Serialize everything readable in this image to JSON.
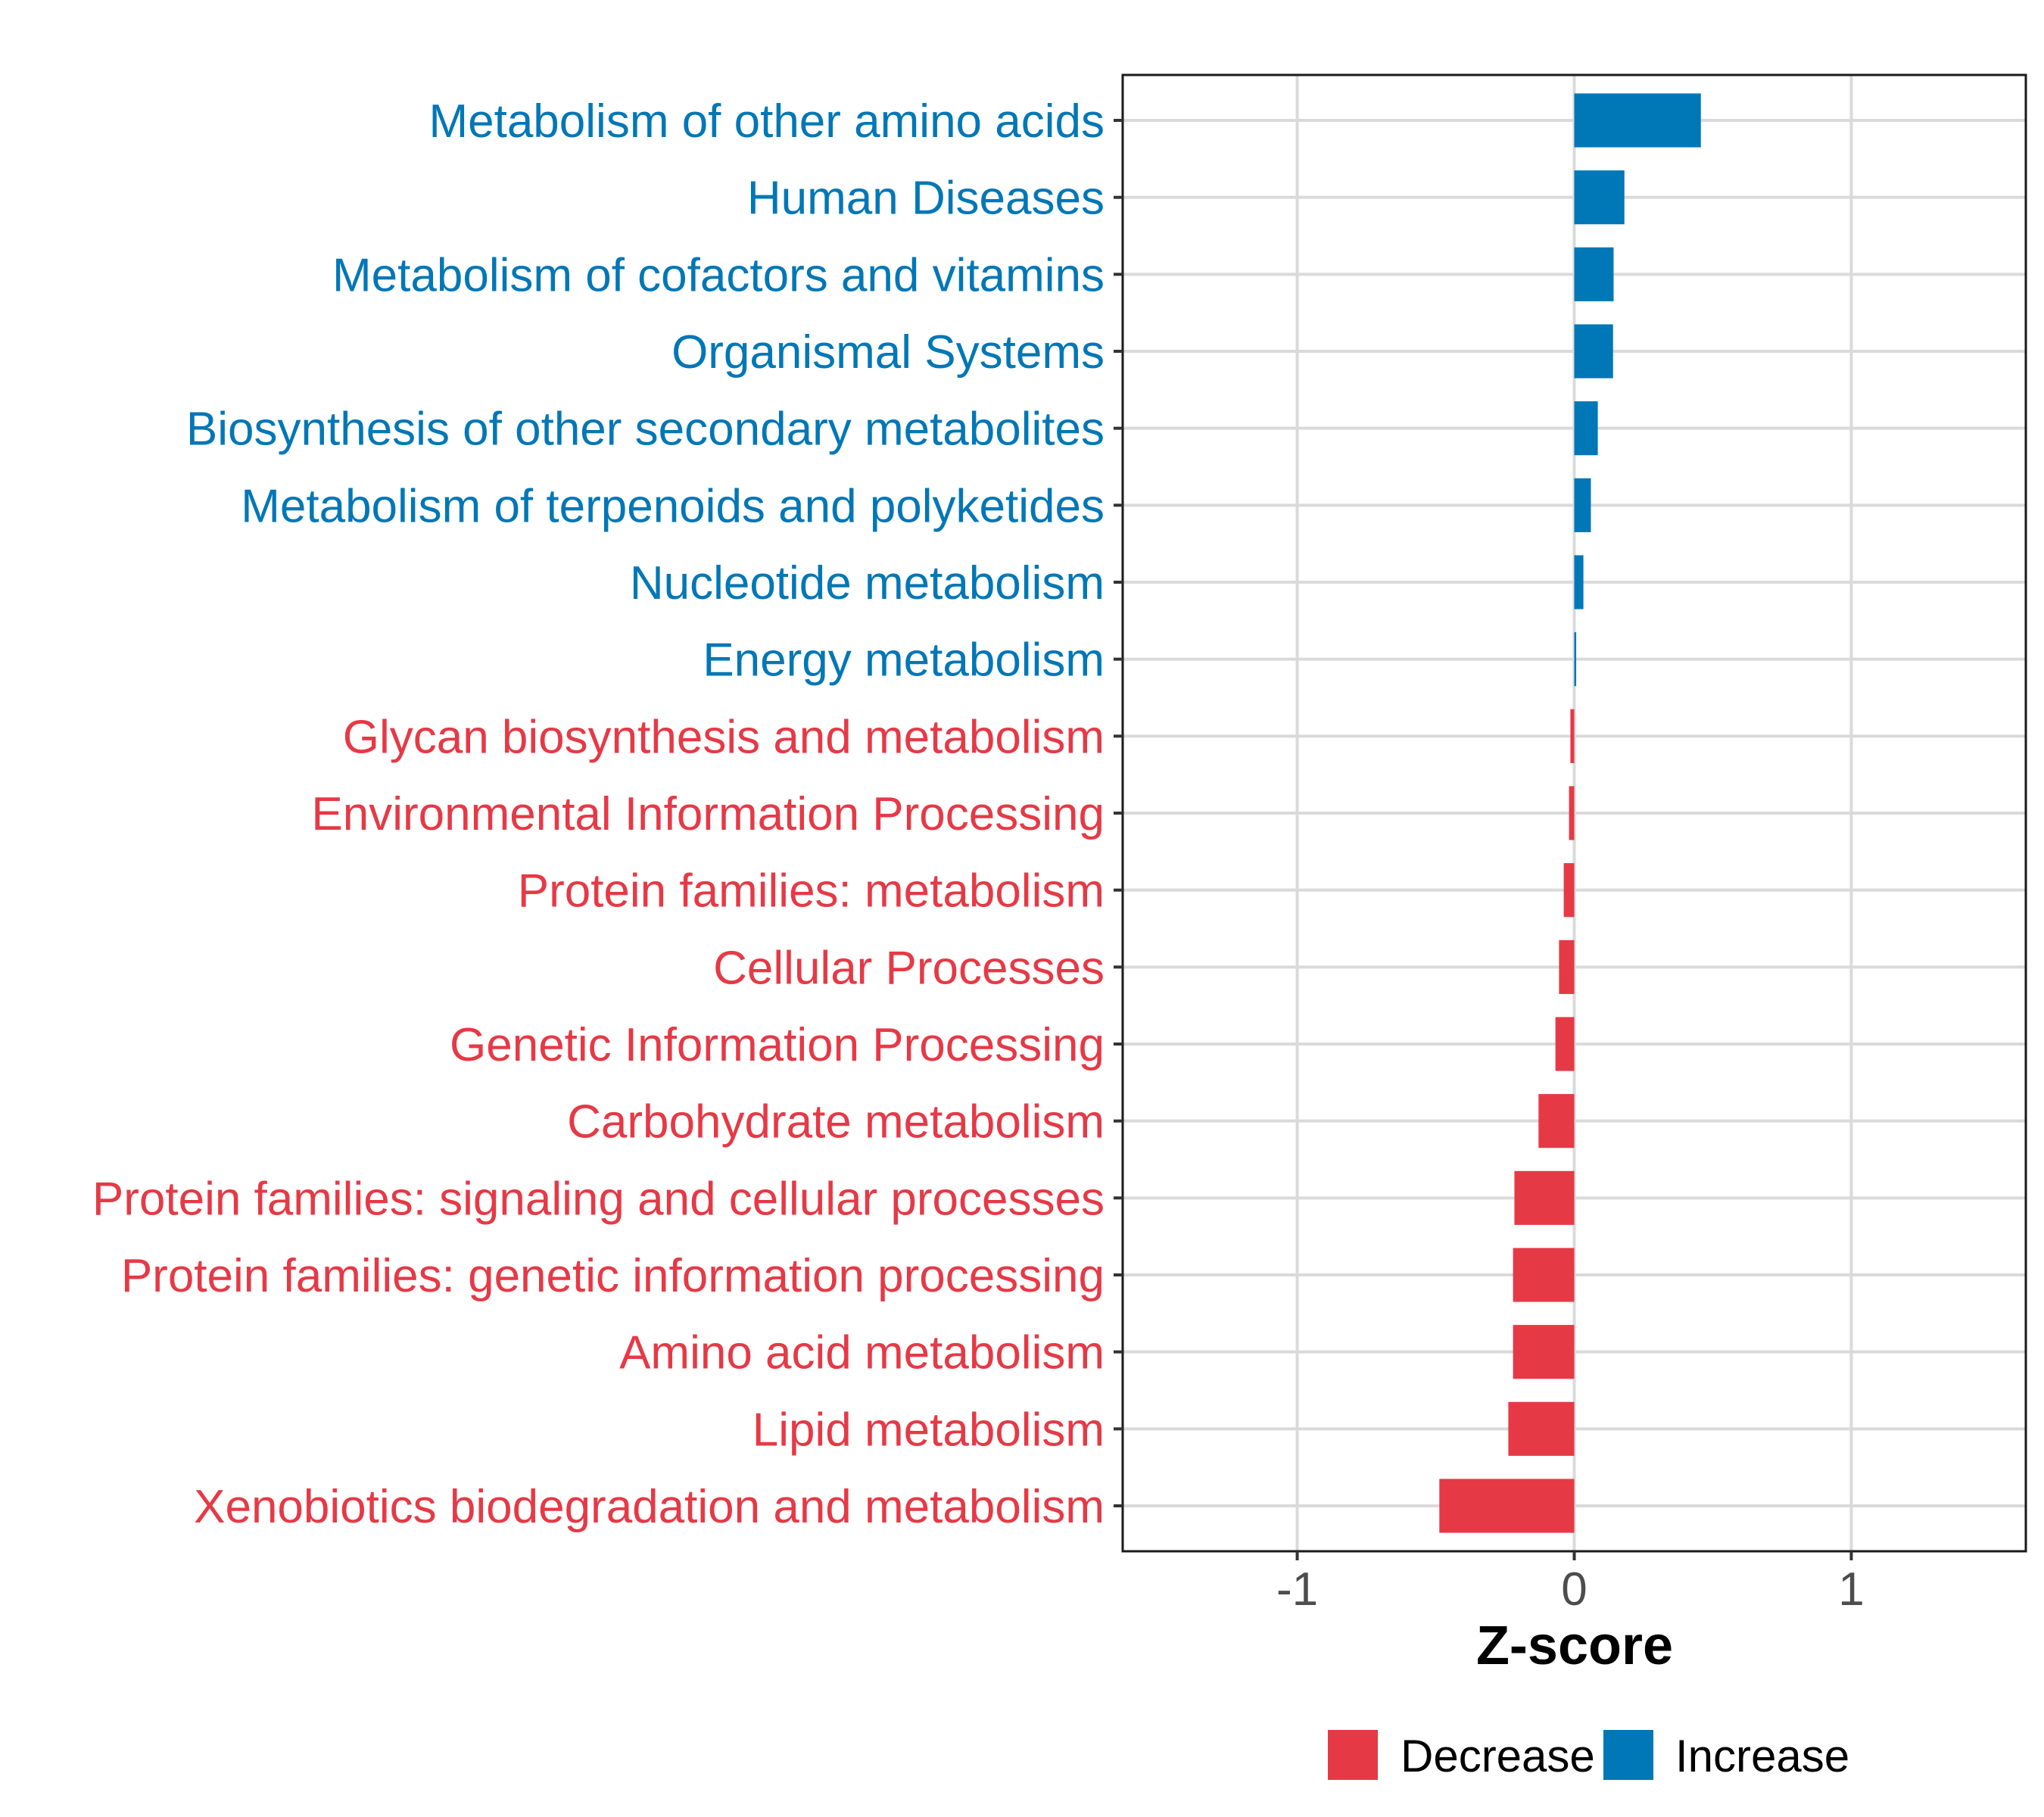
{
  "chart_data": {
    "type": "bar",
    "orientation": "horizontal",
    "title": "",
    "xlabel": "Z-score",
    "ylabel": "",
    "xlim": [
      -1.63,
      1.63
    ],
    "xticks": [
      -1,
      0,
      1
    ],
    "xtick_labels": [
      "-1",
      "0",
      "1"
    ],
    "grid": true,
    "legend_position": "bottom",
    "legend": [
      {
        "name": "Decrease",
        "color": "#e63946"
      },
      {
        "name": "Increase",
        "color": "#0077b6"
      }
    ],
    "categories": [
      "Metabolism of other amino acids",
      "Human Diseases",
      "Metabolism of cofactors and vitamins",
      "Organismal Systems",
      "Biosynthesis of other secondary metabolites",
      "Metabolism of terpenoids and polyketides",
      "Nucleotide metabolism",
      "Energy metabolism",
      "Glycan biosynthesis and metabolism",
      "Environmental Information Processing",
      "Protein families: metabolism",
      "Cellular Processes",
      "Genetic Information Processing",
      "Carbohydrate metabolism",
      "Protein families: signaling and cellular processes",
      "Protein families: genetic information processing",
      "Amino acid metabolism",
      "Lipid metabolism",
      "Xenobiotics biodegradation and metabolism"
    ],
    "values": [
      0.457,
      0.181,
      0.142,
      0.14,
      0.085,
      0.06,
      0.033,
      0.007,
      -0.014,
      -0.019,
      -0.038,
      -0.055,
      -0.068,
      -0.129,
      -0.216,
      -0.221,
      -0.221,
      -0.238,
      -0.487
    ],
    "groups": [
      "Increase",
      "Increase",
      "Increase",
      "Increase",
      "Increase",
      "Increase",
      "Increase",
      "Increase",
      "Decrease",
      "Decrease",
      "Decrease",
      "Decrease",
      "Decrease",
      "Decrease",
      "Decrease",
      "Decrease",
      "Decrease",
      "Decrease",
      "Decrease"
    ]
  }
}
